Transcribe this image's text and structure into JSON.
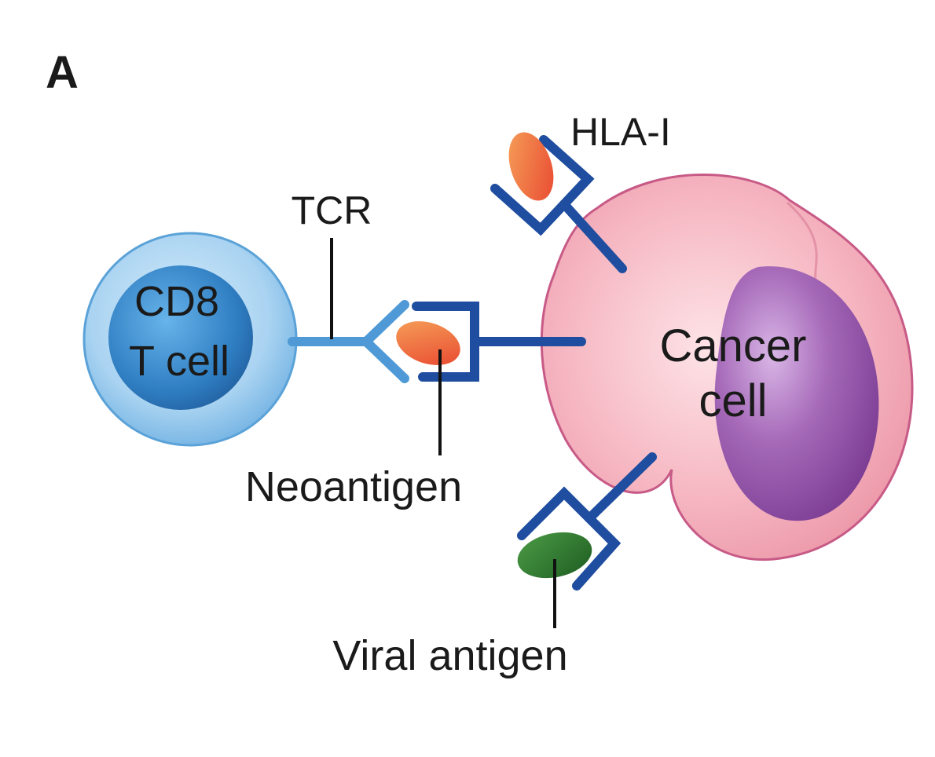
{
  "figure": {
    "panel_label": "A",
    "cells": {
      "t_cell": {
        "line1": "CD8",
        "line2": "T cell"
      },
      "cancer_cell": {
        "line1": "Cancer",
        "line2": "cell"
      }
    },
    "labels": {
      "hla": "HLA-I",
      "tcr": "TCR",
      "neoantigen": "Neoantigen",
      "viral_antigen": "Viral antigen"
    }
  },
  "colors": {
    "tcell_outer": "#9ccbec",
    "tcell_nucleus": "#2f7ec2",
    "tcr": "#4f9ad6",
    "hla": "#1f4d9f",
    "cancer_body": "#f2a7b3",
    "cancer_outline": "#c75a86",
    "cancer_nucleus": "#8a4aa1",
    "neoantigen": "#ef6a3c",
    "viral_antigen": "#2f7d2f"
  }
}
